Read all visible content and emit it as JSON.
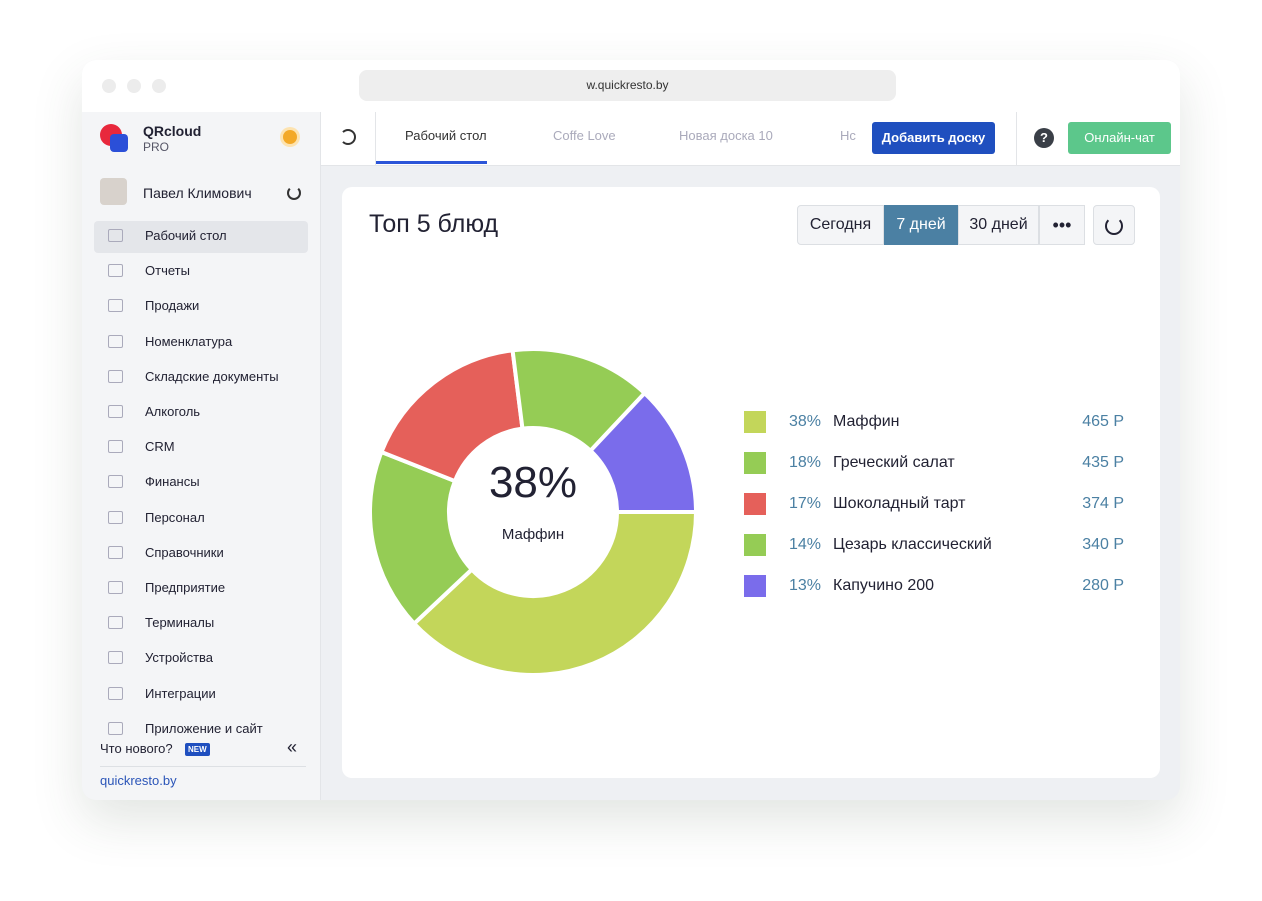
{
  "browser": {
    "url": "w.quickresto.by"
  },
  "sidebar": {
    "brand": "QRcloud",
    "plan": "PRO",
    "user": "Павел Климович",
    "menu": [
      "Рабочий стол",
      "Отчеты",
      "Продажи",
      "Номенклатура",
      "Складские документы",
      "Алкоголь",
      "CRM",
      "Финансы",
      "Персонал",
      "Справочники",
      "Предприятие",
      "Терминалы",
      "Устройства",
      "Интеграции",
      "Приложение и сайт"
    ],
    "whats_new": "Что нового?",
    "badge": "NEW",
    "footer_link": "quickresto.by"
  },
  "topbar": {
    "tabs": [
      "Рабочий стол",
      "Coffe Love",
      "Новая доска 10",
      "Нс"
    ],
    "add_board": "Добавить доску",
    "chat": "Онлайн-чат"
  },
  "widget": {
    "periods": [
      "Сегодня",
      "7 дней",
      "30 дней"
    ],
    "amounts": [
      "465 Р",
      "435 Р",
      "374 Р",
      "340 Р",
      "280 Р"
    ]
  },
  "chart_data": {
    "type": "pie",
    "title": "Топ 5 блюд",
    "categories": [
      "Маффин",
      "Греческий салат",
      "Шоколадный тарт",
      "Цезарь классический",
      "Капучино 200"
    ],
    "values": [
      38,
      18,
      17,
      14,
      13
    ],
    "value_labels": [
      "38%",
      "18%",
      "17%",
      "14%",
      "13%"
    ],
    "colors": [
      "#c3d65a",
      "#95cc55",
      "#e5605a",
      "#95cc55",
      "#7a6ceb"
    ]
  }
}
